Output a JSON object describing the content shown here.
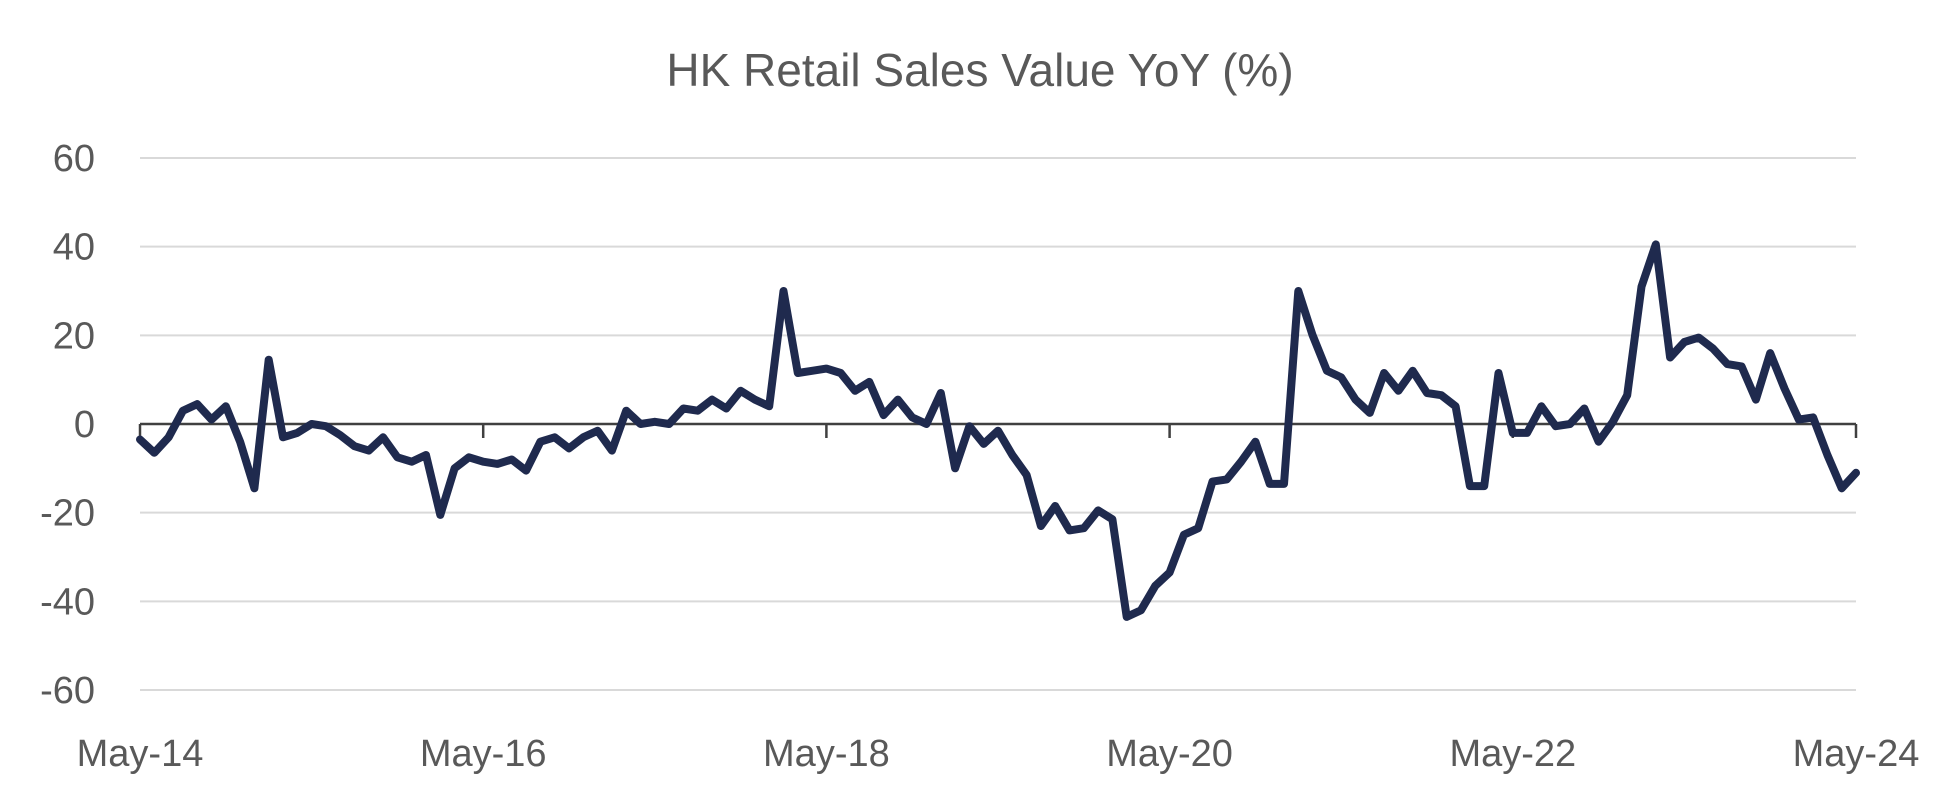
{
  "chart_data": {
    "type": "line",
    "title": "HK Retail Sales Value YoY (%)",
    "xlabel": "",
    "ylabel": "",
    "ylim": [
      -60,
      60
    ],
    "yticks": [
      60,
      40,
      20,
      0,
      -20,
      -40,
      -60
    ],
    "xticks": [
      "May-14",
      "May-16",
      "May-18",
      "May-20",
      "May-22",
      "May-24"
    ],
    "grid": true,
    "legend": "none",
    "x": [
      "2014-05",
      "2014-06",
      "2014-07",
      "2014-08",
      "2014-09",
      "2014-10",
      "2014-11",
      "2014-12",
      "2015-01",
      "2015-02",
      "2015-03",
      "2015-04",
      "2015-05",
      "2015-06",
      "2015-07",
      "2015-08",
      "2015-09",
      "2015-10",
      "2015-11",
      "2015-12",
      "2016-01",
      "2016-02",
      "2016-03",
      "2016-04",
      "2016-05",
      "2016-06",
      "2016-07",
      "2016-08",
      "2016-09",
      "2016-10",
      "2016-11",
      "2016-12",
      "2017-01",
      "2017-02",
      "2017-03",
      "2017-04",
      "2017-05",
      "2017-06",
      "2017-07",
      "2017-08",
      "2017-09",
      "2017-10",
      "2017-11",
      "2017-12",
      "2018-01",
      "2018-02",
      "2018-03",
      "2018-04",
      "2018-05",
      "2018-06",
      "2018-07",
      "2018-08",
      "2018-09",
      "2018-10",
      "2018-11",
      "2018-12",
      "2019-01",
      "2019-02",
      "2019-03",
      "2019-04",
      "2019-05",
      "2019-06",
      "2019-07",
      "2019-08",
      "2019-09",
      "2019-10",
      "2019-11",
      "2019-12",
      "2020-01",
      "2020-02",
      "2020-03",
      "2020-04",
      "2020-05",
      "2020-06",
      "2020-07",
      "2020-08",
      "2020-09",
      "2020-10",
      "2020-11",
      "2020-12",
      "2021-01",
      "2021-02",
      "2021-03",
      "2021-04",
      "2021-05",
      "2021-06",
      "2021-07",
      "2021-08",
      "2021-09",
      "2021-10",
      "2021-11",
      "2021-12",
      "2022-01",
      "2022-02",
      "2022-03",
      "2022-04",
      "2022-05",
      "2022-06",
      "2022-07",
      "2022-08",
      "2022-09",
      "2022-10",
      "2022-11",
      "2022-12",
      "2023-01",
      "2023-02",
      "2023-03",
      "2023-04",
      "2023-05",
      "2023-06",
      "2023-07",
      "2023-08",
      "2023-09",
      "2023-10",
      "2023-11",
      "2023-12",
      "2024-01",
      "2024-02",
      "2024-03",
      "2024-04",
      "2024-05"
    ],
    "series": [
      {
        "color": "#1f2a4e",
        "values": [
          -3.5,
          -6.5,
          -3.0,
          3.0,
          4.5,
          1.0,
          4.0,
          -4.0,
          -14.5,
          14.5,
          -3.0,
          -2.0,
          0.0,
          -0.5,
          -2.5,
          -5.0,
          -6.0,
          -3.0,
          -7.5,
          -8.5,
          -7.0,
          -20.5,
          -10.0,
          -7.5,
          -8.5,
          -9.0,
          -8.0,
          -10.5,
          -4.0,
          -3.0,
          -5.5,
          -3.0,
          -1.5,
          -6.0,
          3.0,
          0.0,
          0.5,
          0.0,
          3.5,
          3.0,
          5.5,
          3.5,
          7.5,
          5.5,
          4.0,
          30.0,
          11.5,
          12.0,
          12.5,
          11.5,
          7.5,
          9.5,
          2.0,
          5.5,
          1.5,
          0.0,
          7.0,
          -10.0,
          -0.5,
          -4.5,
          -1.5,
          -7.0,
          -11.5,
          -23.0,
          -18.5,
          -24.0,
          -23.5,
          -19.5,
          -21.5,
          -43.5,
          -42.0,
          -36.5,
          -33.5,
          -25.0,
          -23.5,
          -13.0,
          -12.5,
          -8.5,
          -4.0,
          -13.5,
          -13.5,
          30.0,
          20.0,
          12.0,
          10.5,
          5.5,
          2.5,
          11.5,
          7.5,
          12.0,
          7.0,
          6.5,
          4.0,
          -14.0,
          -14.0,
          11.5,
          -2.0,
          -2.0,
          4.0,
          -0.5,
          0.0,
          3.5,
          -4.0,
          0.5,
          6.5,
          31.0,
          40.5,
          15.0,
          18.5,
          19.5,
          17.0,
          13.5,
          13.0,
          5.5,
          16.0,
          8.0,
          1.0,
          1.5,
          -7.0,
          -14.5,
          -11.0
        ]
      }
    ]
  }
}
